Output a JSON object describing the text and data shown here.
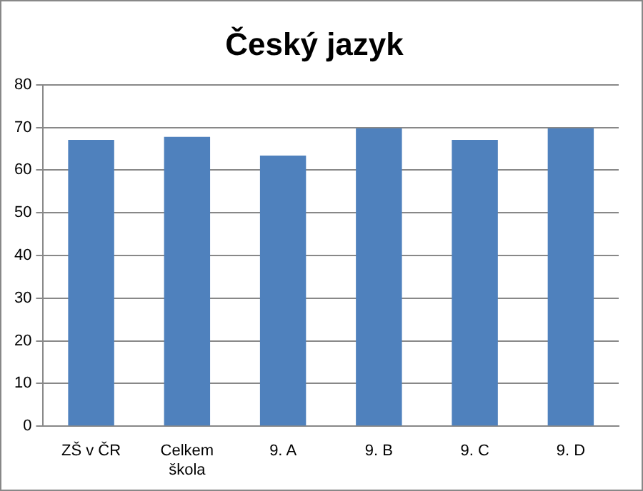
{
  "chart_data": {
    "type": "bar",
    "title": "Český jazyk",
    "categories": [
      "ZŠ v ČR",
      "Celkem škola",
      "9. A",
      "9. B",
      "9. C",
      "9. D"
    ],
    "values": [
      67.1,
      67.8,
      63.4,
      69.8,
      67.1,
      69.8
    ],
    "color": "#4f81bd",
    "ylim": [
      0,
      80
    ],
    "yticks": [
      0,
      10,
      20,
      30,
      40,
      50,
      60,
      70,
      80
    ],
    "grid": "y"
  }
}
